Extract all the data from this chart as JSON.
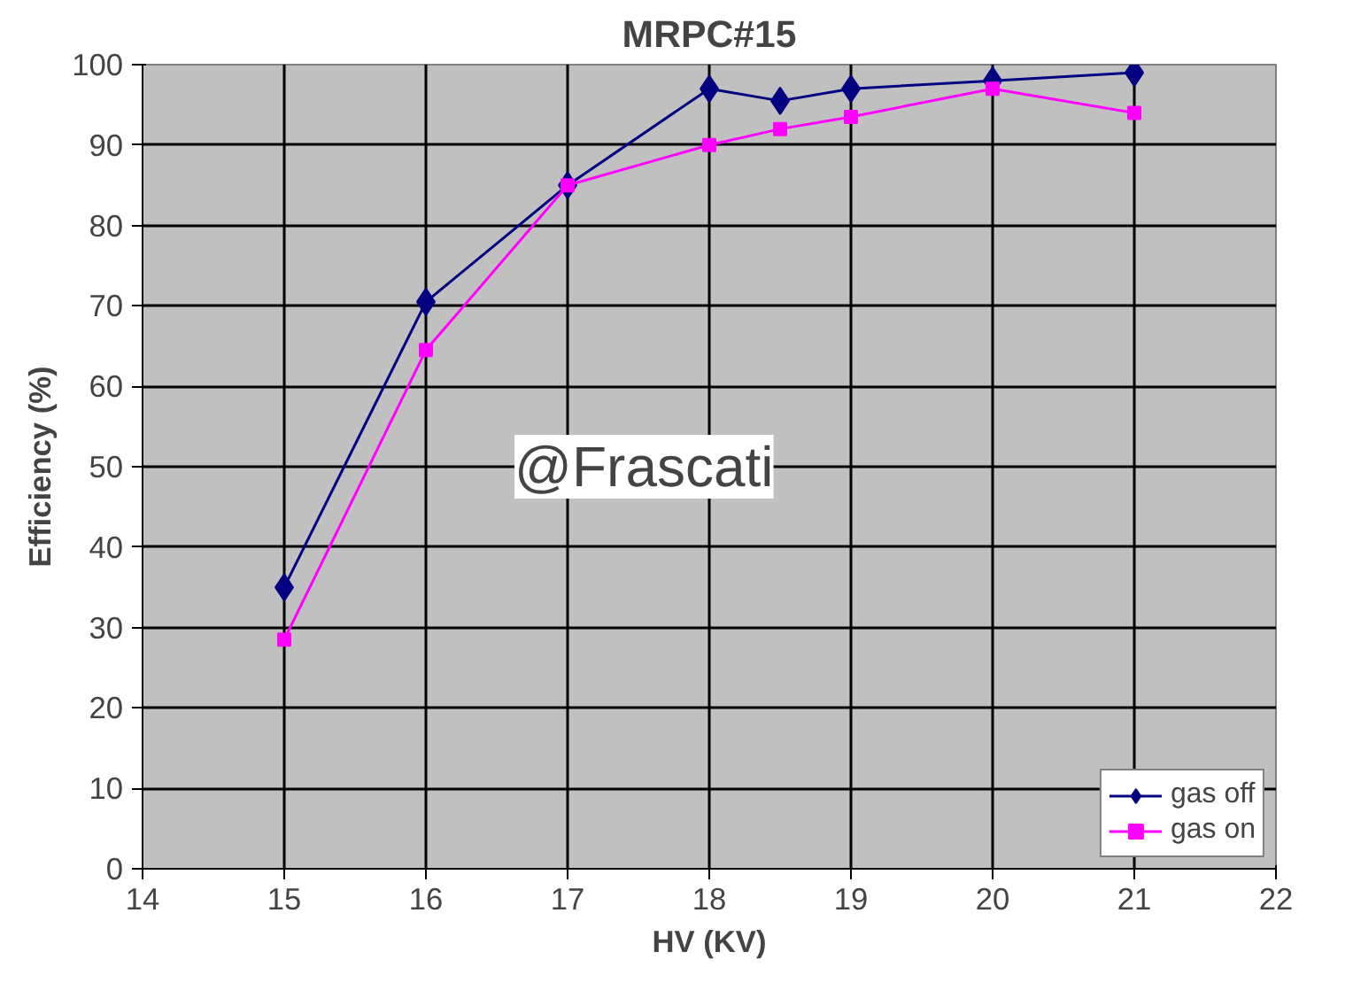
{
  "chart_data": {
    "type": "line",
    "title": "MRPC#15",
    "xlabel": "HV (KV)",
    "ylabel": "Efficiency (%)",
    "x": [
      15,
      16,
      17,
      18,
      18.5,
      19,
      20,
      21
    ],
    "series": [
      {
        "name": "gas off",
        "color": "#000080",
        "marker": "diamond",
        "values": [
          35,
          70.5,
          85,
          97,
          95.5,
          97,
          98,
          99
        ]
      },
      {
        "name": "gas on",
        "color": "#ff00ff",
        "marker": "square",
        "values": [
          28.5,
          64.5,
          85,
          90,
          92,
          93.5,
          97,
          94
        ]
      }
    ],
    "xlim": [
      14,
      22
    ],
    "xticks": [
      14,
      15,
      16,
      17,
      18,
      19,
      20,
      21,
      22
    ],
    "ylim": [
      0,
      100
    ],
    "yticks": [
      0,
      10,
      20,
      30,
      40,
      50,
      60,
      70,
      80,
      90,
      100
    ],
    "grid": true,
    "legend": "bottom right",
    "line_style": "solid",
    "annotations": [
      "@Frascati"
    ]
  }
}
